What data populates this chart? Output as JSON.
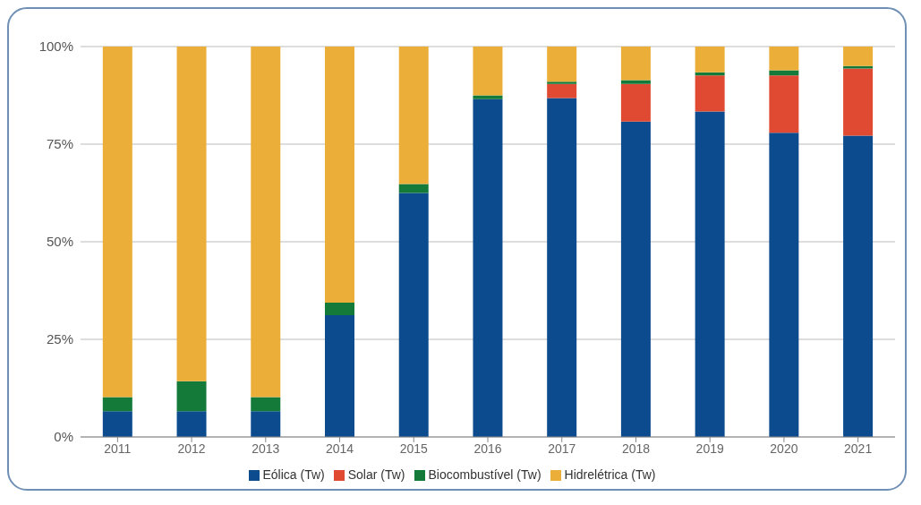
{
  "chart_data": {
    "type": "bar",
    "stacked": true,
    "categories": [
      "2011",
      "2012",
      "2013",
      "2014",
      "2015",
      "2016",
      "2017",
      "2018",
      "2019",
      "2020",
      "2021"
    ],
    "series": [
      {
        "name": "Eólica (Tw)",
        "color": "#0c4b8e",
        "values": [
          6.6,
          6.6,
          6.6,
          31.2,
          62.5,
          86.5,
          86.8,
          80.8,
          83.4,
          77.9,
          77.2
        ]
      },
      {
        "name": "Solar (Tw)",
        "color": "#e04a32",
        "values": [
          0,
          0,
          0,
          0,
          0,
          0,
          3.6,
          9.6,
          9.2,
          14.7,
          17.2
        ]
      },
      {
        "name": "Biocombustível (Tw)",
        "color": "#137a3a",
        "values": [
          3.6,
          7.7,
          3.6,
          3.2,
          2.3,
          1.0,
          0.6,
          1.0,
          0.8,
          1.3,
          0.6
        ]
      },
      {
        "name": "Hidrelétrica (Tw)",
        "color": "#ebae38",
        "values": [
          89.8,
          85.7,
          89.8,
          65.6,
          35.2,
          12.5,
          9.0,
          8.6,
          6.6,
          6.1,
          5.0
        ]
      }
    ],
    "ylim": [
      0,
      100
    ],
    "yticks": [
      {
        "value": 0,
        "label": "0%"
      },
      {
        "value": 25,
        "label": "25%"
      },
      {
        "value": 50,
        "label": "50%"
      },
      {
        "value": 75,
        "label": "75%"
      },
      {
        "value": 100,
        "label": "100%"
      }
    ],
    "grid": "y",
    "legend": "bottom"
  }
}
